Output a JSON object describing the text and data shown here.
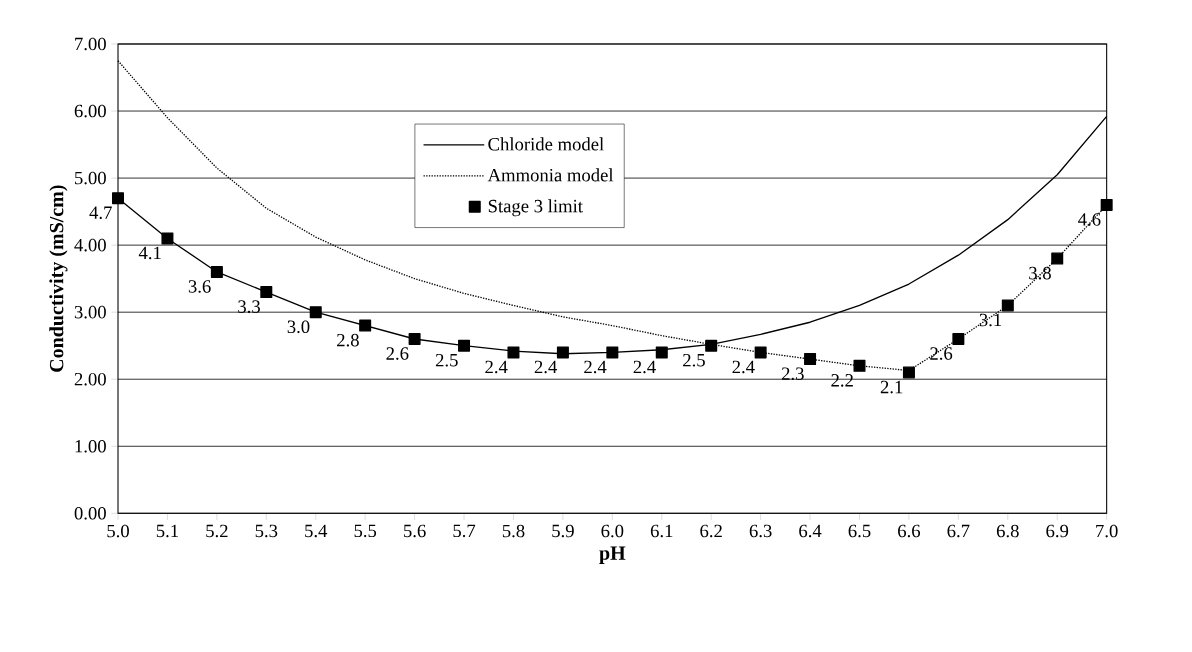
{
  "chart_data": {
    "type": "line",
    "xlabel": "pH",
    "ylabel": "Conductivity (mS/cm)",
    "xlim": [
      5.0,
      7.0
    ],
    "ylim": [
      0,
      7
    ],
    "xticks": [
      {
        "value": 5.0,
        "label": "5.0"
      },
      {
        "value": 5.1,
        "label": "5.1"
      },
      {
        "value": 5.2,
        "label": "5.2"
      },
      {
        "value": 5.3,
        "label": "5.3"
      },
      {
        "value": 5.4,
        "label": "5.4"
      },
      {
        "value": 5.5,
        "label": "5.5"
      },
      {
        "value": 5.6,
        "label": "5.6"
      },
      {
        "value": 5.7,
        "label": "5.7"
      },
      {
        "value": 5.8,
        "label": "5.8"
      },
      {
        "value": 5.9,
        "label": "5.9"
      },
      {
        "value": 6.0,
        "label": "6.0"
      },
      {
        "value": 6.1,
        "label": "6.1"
      },
      {
        "value": 6.2,
        "label": "6.2"
      },
      {
        "value": 6.3,
        "label": "6.3"
      },
      {
        "value": 6.4,
        "label": "6.4"
      },
      {
        "value": 6.5,
        "label": "6.5"
      },
      {
        "value": 6.6,
        "label": "6.6"
      },
      {
        "value": 6.7,
        "label": "6.7"
      },
      {
        "value": 6.8,
        "label": "6.8"
      },
      {
        "value": 6.9,
        "label": "6.9"
      },
      {
        "value": 7.0,
        "label": "7.0"
      }
    ],
    "yticks": [
      {
        "value": 0,
        "label": "0.00"
      },
      {
        "value": 1,
        "label": "1.00"
      },
      {
        "value": 2,
        "label": "2.00"
      },
      {
        "value": 3,
        "label": "3.00"
      },
      {
        "value": 4,
        "label": "4.00"
      },
      {
        "value": 5,
        "label": "5.00"
      },
      {
        "value": 6,
        "label": "6.00"
      },
      {
        "value": 7,
        "label": "7.00"
      }
    ],
    "x": [
      5.0,
      5.1,
      5.2,
      5.3,
      5.4,
      5.5,
      5.6,
      5.7,
      5.8,
      5.9,
      6.0,
      6.1,
      6.2,
      6.3,
      6.4,
      6.5,
      6.6,
      6.7,
      6.8,
      6.9,
      7.0
    ],
    "grid": "y",
    "legend": "top",
    "series": [
      {
        "name": "Chloride model",
        "type": "line",
        "color": "#000000",
        "line_style": "solid",
        "marker": "none",
        "values": [
          4.7,
          4.1,
          3.6,
          3.3,
          3.0,
          2.8,
          2.6,
          2.5,
          2.42,
          2.38,
          2.4,
          2.44,
          2.52,
          2.67,
          2.85,
          3.1,
          3.42,
          3.85,
          4.38,
          5.05,
          5.92
        ]
      },
      {
        "name": "Ammonia model",
        "type": "line",
        "color": "#000000",
        "line_style": "dotted",
        "marker": "none",
        "values": [
          6.75,
          5.9,
          5.15,
          4.55,
          4.12,
          3.78,
          3.5,
          3.28,
          3.1,
          2.93,
          2.8,
          2.65,
          2.52,
          2.4,
          2.3,
          2.2,
          2.13,
          2.6,
          3.1,
          3.8,
          4.6
        ]
      },
      {
        "name": "Stage 3 limit",
        "type": "scatter",
        "color": "#000000",
        "marker": "square",
        "values": [
          4.7,
          4.1,
          3.6,
          3.3,
          3.0,
          2.8,
          2.6,
          2.5,
          2.4,
          2.4,
          2.4,
          2.4,
          2.5,
          2.4,
          2.3,
          2.2,
          2.1,
          2.6,
          3.1,
          3.8,
          4.6
        ],
        "value_labels": [
          "4.7",
          "4.1",
          "3.6",
          "3.3",
          "3.0",
          "2.8",
          "2.6",
          "2.5",
          "2.4",
          "2.4",
          "2.4",
          "2.4",
          "2.5",
          "2.4",
          "2.3",
          "2.2",
          "2.1",
          "2.6",
          "3.1",
          "3.8",
          "4.6"
        ]
      }
    ]
  }
}
